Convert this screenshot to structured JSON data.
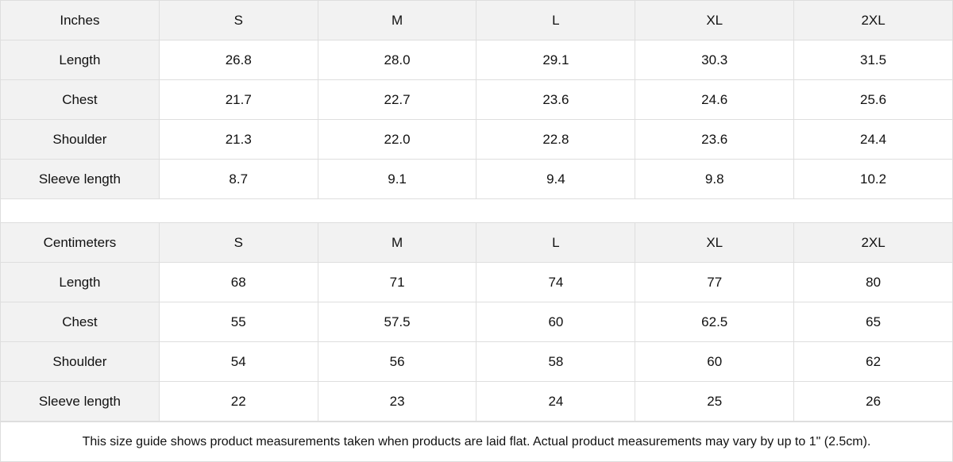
{
  "inches": {
    "header": [
      "Inches",
      "S",
      "M",
      "L",
      "XL",
      "2XL"
    ],
    "rows": [
      [
        "Length",
        "26.8",
        "28.0",
        "29.1",
        "30.3",
        "31.5"
      ],
      [
        "Chest",
        "21.7",
        "22.7",
        "23.6",
        "24.6",
        "25.6"
      ],
      [
        "Shoulder",
        "21.3",
        "22.0",
        "22.8",
        "23.6",
        "24.4"
      ],
      [
        "Sleeve length",
        "8.7",
        "9.1",
        "9.4",
        "9.8",
        "10.2"
      ]
    ]
  },
  "centimeters": {
    "header": [
      "Centimeters",
      "S",
      "M",
      "L",
      "XL",
      "2XL"
    ],
    "rows": [
      [
        "Length",
        "68",
        "71",
        "74",
        "77",
        "80"
      ],
      [
        "Chest",
        "55",
        "57.5",
        "60",
        "62.5",
        "65"
      ],
      [
        "Shoulder",
        "54",
        "56",
        "58",
        "60",
        "62"
      ],
      [
        "Sleeve length",
        "22",
        "23",
        "24",
        "25",
        "26"
      ]
    ]
  },
  "note": "This size guide shows product measurements taken when products are laid flat.  Actual product measurements may vary by up to 1\" (2.5cm)."
}
